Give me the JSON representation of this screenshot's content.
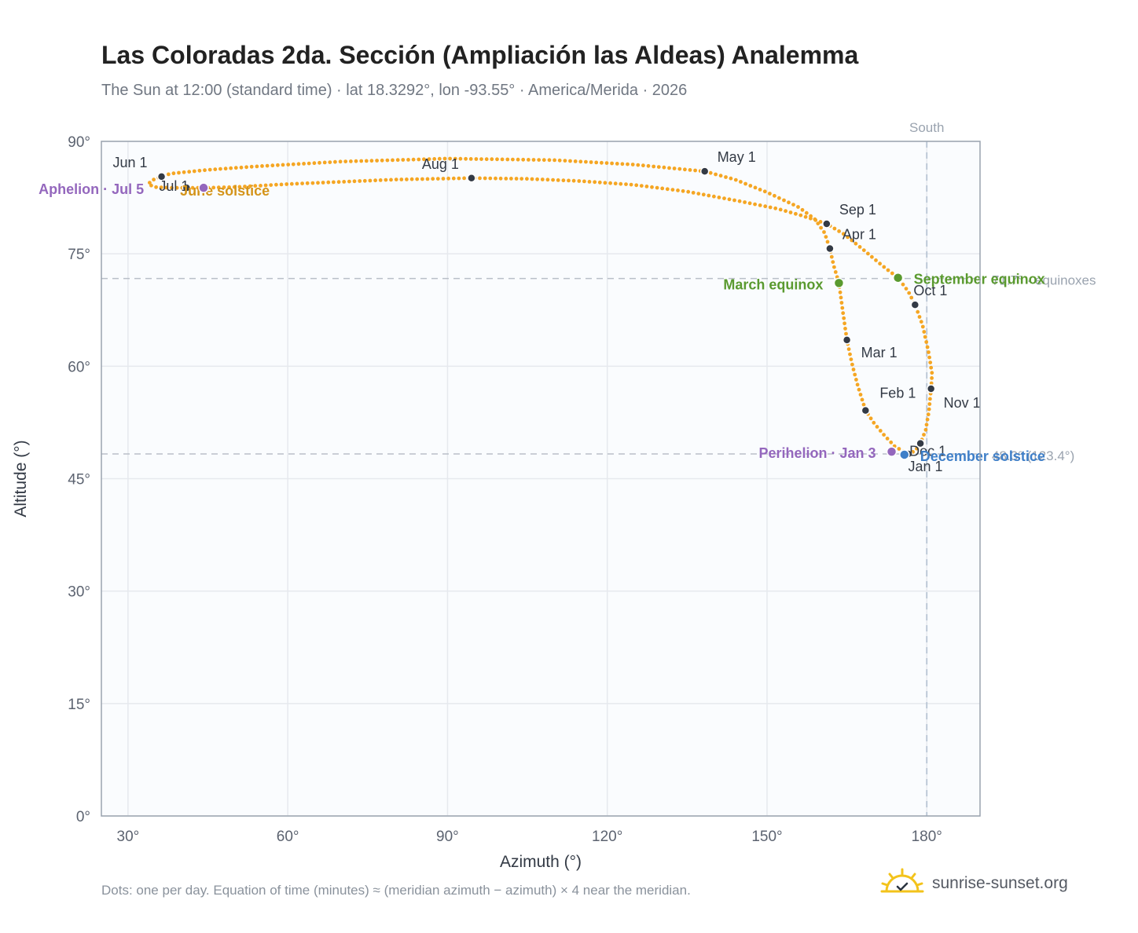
{
  "header": {
    "title": "Las Coloradas 2da. Sección (Ampliación las Aldeas) Analemma",
    "subtitle": "The Sun at 12:00 (standard time) · lat 18.3292°, lon -93.55° · America/Merida · 2026"
  },
  "footer": {
    "note": "Dots: one per day. Equation of time (minutes) ≈ (meridian azimuth − azimuth) × 4 near the meridian.",
    "brand": "sunrise-sunset.org"
  },
  "colors": {
    "analemma": "#f5a623",
    "month_marker": "#333a45",
    "equinox": "#5a9a2f",
    "perihelion": "#9467bd",
    "dec_solstice": "#3f7fc8",
    "jun_solstice": "#d4941a",
    "grid": "#e6e9ee",
    "plot_bg": "#fafcfe"
  },
  "chart_data": {
    "type": "scatter",
    "xlabel": "Azimuth (°)",
    "ylabel": "Altitude (°)",
    "xlim": [
      25,
      190
    ],
    "ylim": [
      0,
      90
    ],
    "x_ticks": [
      30,
      60,
      90,
      120,
      150,
      180
    ],
    "x_tick_labels": [
      "30°",
      "60°",
      "90°",
      "120°",
      "150°",
      "180°"
    ],
    "y_ticks": [
      0,
      15,
      30,
      45,
      60,
      75,
      90
    ],
    "y_tick_labels": [
      "0°",
      "15°",
      "30°",
      "45°",
      "60°",
      "75°",
      "90°"
    ],
    "grid": true,
    "reference_lines": [
      {
        "orientation": "vertical",
        "value": 180,
        "label": "South"
      },
      {
        "orientation": "horizontal",
        "value": 71.7,
        "label": "71.7° · equinoxes"
      },
      {
        "orientation": "horizontal",
        "value": 48.3,
        "label": "48.3° (123.4°)"
      }
    ],
    "month_markers": [
      {
        "label": "Jan 1",
        "azimuth": 176.5,
        "altitude": 48.3
      },
      {
        "label": "Feb 1",
        "azimuth": 168.5,
        "altitude": 54.1
      },
      {
        "label": "Mar 1",
        "azimuth": 165.0,
        "altitude": 63.5
      },
      {
        "label": "Apr 1",
        "azimuth": 161.8,
        "altitude": 75.7
      },
      {
        "label": "May 1",
        "azimuth": 138.3,
        "altitude": 86.0
      },
      {
        "label": "Jun 1",
        "azimuth": 36.3,
        "altitude": 85.3
      },
      {
        "label": "Jul 1",
        "azimuth": 41.0,
        "altitude": 83.8
      },
      {
        "label": "Aug 1",
        "azimuth": 94.5,
        "altitude": 85.1
      },
      {
        "label": "Sep 1",
        "azimuth": 161.2,
        "altitude": 79.0
      },
      {
        "label": "Oct 1",
        "azimuth": 177.8,
        "altitude": 68.2
      },
      {
        "label": "Nov 1",
        "azimuth": 180.8,
        "altitude": 57.0
      },
      {
        "label": "Dec 1",
        "azimuth": 178.8,
        "altitude": 49.7
      }
    ],
    "events": [
      {
        "label": "March equinox",
        "azimuth": 163.5,
        "altitude": 71.1
      },
      {
        "label": "September equinox",
        "azimuth": 174.6,
        "altitude": 71.8
      },
      {
        "label": "June solstice",
        "azimuth": 44.2,
        "altitude": 83.8
      },
      {
        "label": "December solstice",
        "azimuth": 175.8,
        "altitude": 48.2
      },
      {
        "label": "Perihelion · Jan 3",
        "azimuth": 173.4,
        "altitude": 48.6
      },
      {
        "label": "Aphelion · Jul 5",
        "azimuth": 44.2,
        "altitude": 83.8
      }
    ],
    "path_keypoints": [
      [
        176.5,
        48.3
      ],
      [
        174.0,
        49.3
      ],
      [
        172.0,
        50.8
      ],
      [
        170.0,
        52.5
      ],
      [
        168.5,
        54.1
      ],
      [
        167.0,
        57.5
      ],
      [
        165.9,
        60.5
      ],
      [
        165.0,
        63.5
      ],
      [
        164.2,
        67.5
      ],
      [
        163.5,
        71.1
      ],
      [
        162.5,
        73.5
      ],
      [
        161.8,
        75.7
      ],
      [
        160.8,
        77.8
      ],
      [
        159.0,
        79.6
      ],
      [
        156.0,
        81.2
      ],
      [
        150.0,
        83.2
      ],
      [
        144.0,
        84.9
      ],
      [
        138.3,
        86.0
      ],
      [
        125.0,
        86.9
      ],
      [
        110.0,
        87.5
      ],
      [
        90.0,
        87.7
      ],
      [
        70.0,
        87.3
      ],
      [
        55.0,
        86.7
      ],
      [
        45.0,
        86.2
      ],
      [
        38.0,
        85.7
      ],
      [
        36.3,
        85.3
      ],
      [
        34.5,
        84.8
      ],
      [
        33.8,
        84.3
      ],
      [
        35.0,
        83.9
      ],
      [
        38.0,
        83.8
      ],
      [
        41.0,
        83.8
      ],
      [
        44.2,
        83.8
      ],
      [
        50.0,
        83.9
      ],
      [
        60.0,
        84.3
      ],
      [
        70.0,
        84.6
      ],
      [
        80.0,
        84.9
      ],
      [
        94.5,
        85.1
      ],
      [
        105.0,
        85.0
      ],
      [
        115.0,
        84.7
      ],
      [
        125.0,
        84.2
      ],
      [
        135.0,
        83.3
      ],
      [
        145.0,
        82.0
      ],
      [
        152.0,
        81.0
      ],
      [
        156.5,
        80.1
      ],
      [
        161.2,
        79.0
      ],
      [
        164.5,
        77.6
      ],
      [
        168.0,
        75.6
      ],
      [
        171.5,
        73.5
      ],
      [
        174.6,
        71.8
      ],
      [
        176.5,
        70.0
      ],
      [
        177.8,
        68.2
      ],
      [
        179.2,
        65.5
      ],
      [
        180.3,
        62.0
      ],
      [
        181.0,
        59.0
      ],
      [
        180.8,
        57.0
      ],
      [
        180.4,
        54.0
      ],
      [
        179.8,
        51.5
      ],
      [
        178.8,
        49.7
      ],
      [
        177.8,
        48.7
      ],
      [
        176.5,
        48.3
      ]
    ]
  }
}
